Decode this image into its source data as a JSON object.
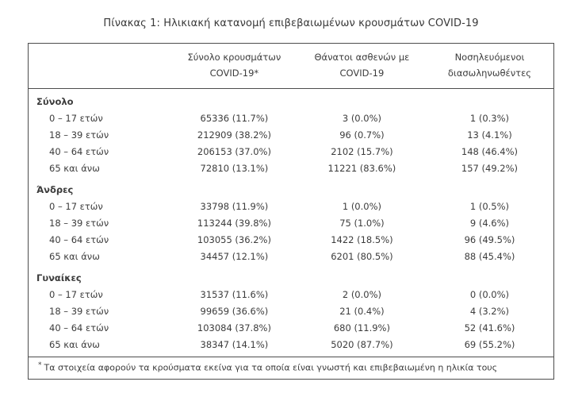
{
  "page": {
    "title": "Πίνακας 1: Ηλικιακή κατανομή επιβεβαιωμένων κρουσμάτων COVID-19"
  },
  "table": {
    "columns": [
      {
        "line1": "Σύνολο κρουσμάτων",
        "line2": "COVID-19*"
      },
      {
        "line1": "Θάνατοι ασθενών με",
        "line2": "COVID-19"
      },
      {
        "line1": "Νοσηλευόμενοι",
        "line2": "διασωληνωθέντες"
      }
    ],
    "sections": [
      {
        "label": "Σύνολο",
        "rows": [
          {
            "label": "0 – 17 ετών",
            "values": [
              "65336 (11.7%)",
              "3 (0.0%)",
              "1 (0.3%)"
            ]
          },
          {
            "label": "18 – 39 ετών",
            "values": [
              "212909 (38.2%)",
              "96 (0.7%)",
              "13 (4.1%)"
            ]
          },
          {
            "label": "40 – 64 ετών",
            "values": [
              "206153 (37.0%)",
              "2102 (15.7%)",
              "148 (46.4%)"
            ]
          },
          {
            "label": "65 και άνω",
            "values": [
              "72810 (13.1%)",
              "11221 (83.6%)",
              "157 (49.2%)"
            ]
          }
        ]
      },
      {
        "label": "Άνδρες",
        "rows": [
          {
            "label": "0 – 17 ετών",
            "values": [
              "33798 (11.9%)",
              "1 (0.0%)",
              "1 (0.5%)"
            ]
          },
          {
            "label": "18 – 39 ετών",
            "values": [
              "113244 (39.8%)",
              "75 (1.0%)",
              "9 (4.6%)"
            ]
          },
          {
            "label": "40 – 64 ετών",
            "values": [
              "103055 (36.2%)",
              "1422 (18.5%)",
              "96 (49.5%)"
            ]
          },
          {
            "label": "65 και άνω",
            "values": [
              "34457 (12.1%)",
              "6201 (80.5%)",
              "88 (45.4%)"
            ]
          }
        ]
      },
      {
        "label": "Γυναίκες",
        "rows": [
          {
            "label": "0 – 17 ετών",
            "values": [
              "31537 (11.6%)",
              "2 (0.0%)",
              "0 (0.0%)"
            ]
          },
          {
            "label": "18 – 39 ετών",
            "values": [
              "99659 (36.6%)",
              "21 (0.4%)",
              "4 (3.2%)"
            ]
          },
          {
            "label": "40 – 64 ετών",
            "values": [
              "103084 (37.8%)",
              "680 (11.9%)",
              "52 (41.6%)"
            ]
          },
          {
            "label": "65 και άνω",
            "values": [
              "38347 (14.1%)",
              "5020 (87.7%)",
              "69 (55.2%)"
            ]
          }
        ]
      }
    ],
    "footnote_marker": "*",
    "footnote_text": "Τα στοιχεία αφορούν τα κρούσματα εκείνα για τα οποία είναι γνωστή και επιβεβαιωμένη η ηλικία τους"
  }
}
